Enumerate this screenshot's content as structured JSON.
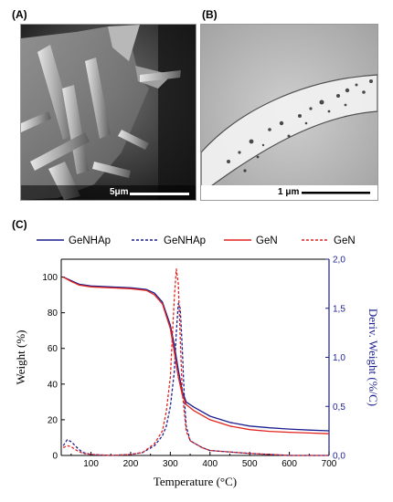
{
  "panels": {
    "a": {
      "label": "(A)",
      "scale_bar": "5μm"
    },
    "b": {
      "label": "(B)",
      "scale_bar": "1 μm"
    },
    "c": {
      "label": "(C)"
    }
  },
  "chart_data": {
    "type": "line",
    "xlabel": "Temperature (°C)",
    "ylabel": "Weight (%)",
    "y2label": "Deriv. Weight (%/C)",
    "xlim": [
      25,
      700
    ],
    "ylim": [
      0,
      110
    ],
    "y2lim": [
      0,
      2.0
    ],
    "xticks": [
      100,
      200,
      300,
      400,
      500,
      600,
      700
    ],
    "yticks": [
      0,
      20,
      40,
      60,
      80,
      100
    ],
    "y2ticks": [
      "0,0",
      "0,5",
      "1,0",
      "1,5",
      "2,0"
    ],
    "y2tick_values": [
      0,
      0.5,
      1.0,
      1.5,
      2.0
    ],
    "legend": {
      "placement": "top",
      "entries": [
        {
          "name": "GeNHAp",
          "color": "#1b1f8f",
          "style": "solid"
        },
        {
          "name": "GeNHAp",
          "color": "#1b1f8f",
          "style": "dashed"
        },
        {
          "name": "GeN",
          "color": "#e2241e",
          "style": "solid"
        },
        {
          "name": "GeN",
          "color": "#e2241e",
          "style": "dashed"
        }
      ]
    },
    "series": [
      {
        "name": "GeNHAp",
        "axis": "left",
        "color": "#1b1f8f",
        "style": "solid",
        "x": [
          30,
          50,
          70,
          100,
          150,
          200,
          240,
          260,
          280,
          300,
          310,
          320,
          330,
          340,
          360,
          400,
          450,
          500,
          550,
          600,
          650,
          700
        ],
        "y": [
          100,
          98,
          96,
          95,
          94.5,
          94,
          93,
          91,
          86,
          73,
          62,
          48,
          36,
          30,
          27,
          22,
          18.5,
          16.5,
          15.5,
          14.8,
          14.2,
          13.8
        ]
      },
      {
        "name": "GeNHAp",
        "axis": "right",
        "color": "#1b1f8f",
        "style": "dashed",
        "x": [
          30,
          40,
          50,
          60,
          70,
          80,
          100,
          150,
          200,
          230,
          260,
          280,
          290,
          300,
          310,
          315,
          320,
          325,
          330,
          335,
          340,
          350,
          380,
          400,
          500,
          600,
          700
        ],
        "y": [
          0.1,
          0.16,
          0.14,
          0.1,
          0.06,
          0.03,
          0.01,
          0.0,
          0.01,
          0.03,
          0.1,
          0.2,
          0.3,
          0.5,
          0.85,
          1.25,
          1.55,
          1.5,
          1.1,
          0.6,
          0.3,
          0.15,
          0.08,
          0.05,
          0.02,
          0.0,
          0.0
        ]
      },
      {
        "name": "GeN",
        "axis": "left",
        "color": "#e2241e",
        "style": "solid",
        "x": [
          30,
          50,
          70,
          100,
          150,
          200,
          240,
          260,
          280,
          300,
          310,
          320,
          330,
          340,
          360,
          400,
          450,
          500,
          550,
          600,
          650,
          700
        ],
        "y": [
          100,
          97.5,
          95.5,
          94.5,
          94,
          93.5,
          92.5,
          90,
          85,
          71,
          58,
          44,
          34,
          28.5,
          25,
          20,
          16.5,
          14.5,
          13.5,
          13,
          12.6,
          12.2
        ]
      },
      {
        "name": "GeN",
        "axis": "right",
        "color": "#e2241e",
        "style": "dashed",
        "x": [
          30,
          40,
          50,
          60,
          70,
          80,
          100,
          150,
          200,
          230,
          260,
          280,
          290,
          300,
          305,
          310,
          315,
          320,
          325,
          330,
          340,
          350,
          380,
          400,
          500,
          600,
          700
        ],
        "y": [
          0.08,
          0.1,
          0.09,
          0.06,
          0.04,
          0.02,
          0.01,
          0.0,
          0.01,
          0.03,
          0.12,
          0.25,
          0.45,
          0.8,
          1.2,
          1.6,
          1.9,
          1.75,
          1.2,
          0.65,
          0.25,
          0.15,
          0.08,
          0.05,
          0.02,
          0.0,
          0.0
        ]
      }
    ]
  }
}
